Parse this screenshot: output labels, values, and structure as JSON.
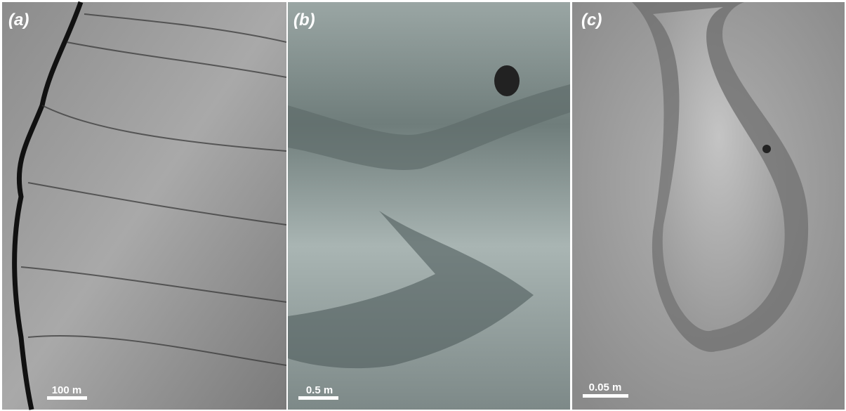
{
  "panels": [
    {
      "label": "(a)",
      "scale": "100 m"
    },
    {
      "label": "(b)",
      "scale": "0.5 m"
    },
    {
      "label": "(c)",
      "scale": "0.05 m"
    }
  ]
}
